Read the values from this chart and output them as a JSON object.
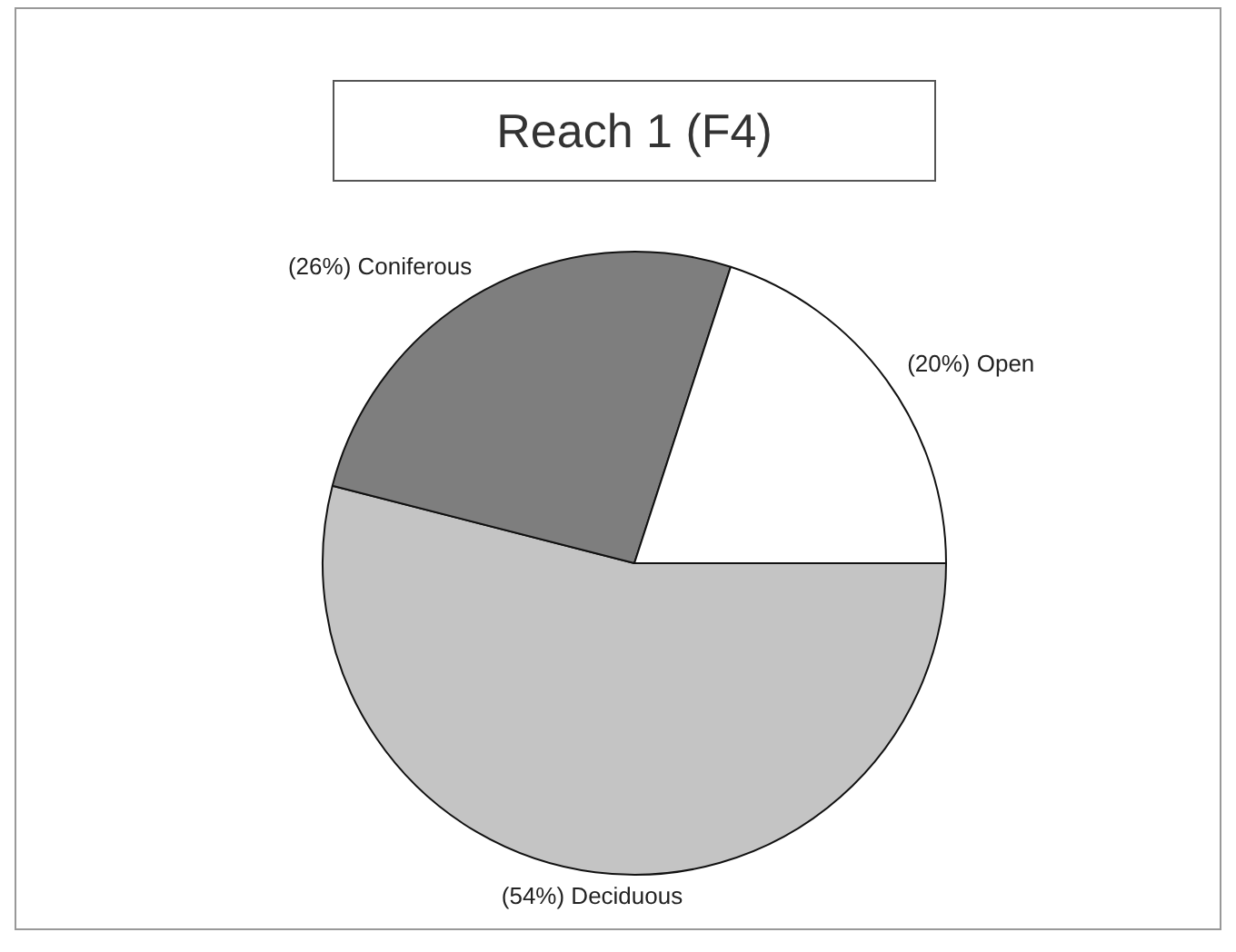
{
  "chart_data": {
    "type": "pie",
    "title": "Reach 1 (F4)",
    "categories": [
      "Deciduous",
      "Coniferous",
      "Open"
    ],
    "values": [
      54,
      26,
      20
    ],
    "colors": [
      "#c4c4c4",
      "#7e7e7e",
      "#ffffff"
    ],
    "value_labels": [
      "(54%)",
      "(26%)",
      "(20%)"
    ],
    "legend": false
  }
}
